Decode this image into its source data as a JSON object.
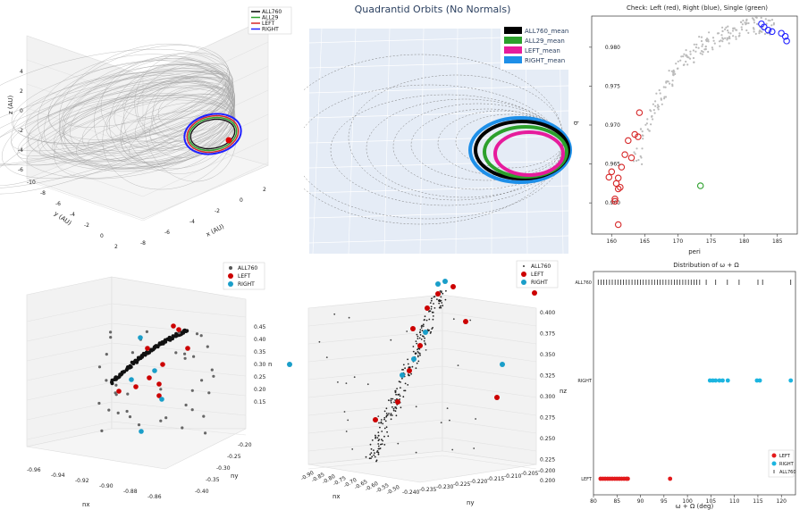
{
  "p1": {
    "legend": [
      "ALL760",
      "ALL29",
      "LEFT",
      "RIGHT"
    ],
    "colors": [
      "#000000",
      "#2ca02c",
      "#d62728",
      "#1f1fff"
    ],
    "zlabel": "z (AU)",
    "xlabel": "x (AU)",
    "ylabel": "y (AU)",
    "zticks": [
      "4",
      "2",
      "0",
      "-2",
      "-4",
      "-6"
    ],
    "xticks": [
      "-8",
      "-6",
      "-4",
      "-2",
      "0",
      "2"
    ],
    "yticks": [
      "-10",
      "-8",
      "-6",
      "-4",
      "-2",
      "0",
      "2"
    ]
  },
  "p2": {
    "title": "Quadrantid Orbits (No Normals)",
    "legend": [
      "ALL760_mean",
      "ALL29_mean",
      "LEFT_mean",
      "RIGHT_mean"
    ],
    "colors": [
      "#000000",
      "#2ca02c",
      "#e61c9c",
      "#1e8fe8"
    ]
  },
  "chart_data": [
    {
      "type": "scatter",
      "title": "Check: Left (red), Right (blue), Single (green)",
      "xlabel": "peri",
      "ylabel": "q",
      "xlim": [
        157,
        188
      ],
      "ylim": [
        0.956,
        0.984
      ],
      "xticks": [
        160,
        165,
        170,
        175,
        180,
        185
      ],
      "yticks": [
        0.96,
        0.965,
        0.97,
        0.975,
        0.98
      ],
      "series": [
        {
          "name": "All",
          "color": "#bbbbbb",
          "x": [
            164,
            165,
            166,
            167,
            168,
            169,
            170,
            171,
            172,
            173,
            174,
            175,
            176,
            177,
            178,
            179,
            180,
            181,
            182,
            183,
            184
          ],
          "y": [
            0.966,
            0.969,
            0.971,
            0.973,
            0.9745,
            0.976,
            0.9772,
            0.9783,
            0.979,
            0.9797,
            0.9803,
            0.9808,
            0.9812,
            0.9816,
            0.9819,
            0.9822,
            0.9826,
            0.9828,
            0.9829,
            0.9828,
            0.9825
          ]
        },
        {
          "name": "Left",
          "color": "#d62728",
          "x": [
            159.6,
            160.0,
            160.5,
            160.7,
            161.0,
            161.3,
            161.0,
            160.5,
            161.5,
            162.0,
            162.5,
            163.0,
            163.5,
            164.0,
            164.2,
            161.0
          ],
          "y": [
            0.9633,
            0.964,
            0.9605,
            0.9625,
            0.9618,
            0.962,
            0.9632,
            0.9602,
            0.9646,
            0.9662,
            0.968,
            0.9658,
            0.9688,
            0.9685,
            0.9716,
            0.9572
          ]
        },
        {
          "name": "Right",
          "color": "#1f1fff",
          "x": [
            182.6,
            183.0,
            183.6,
            184.2,
            185.6,
            186.2,
            186.4
          ],
          "y": [
            0.983,
            0.9826,
            0.9822,
            0.982,
            0.9818,
            0.9814,
            0.9808
          ]
        },
        {
          "name": "Single",
          "color": "#2ca02c",
          "x": [
            173.4
          ],
          "y": [
            0.9622
          ]
        }
      ]
    },
    {
      "type": "scatter",
      "xlabel": "nx",
      "ylabel": "ny",
      "zlabel": "n",
      "legend": [
        "ALL760",
        "LEFT",
        "RIGHT"
      ],
      "colors": [
        "#555555",
        "#cc0000",
        "#1a9ec9"
      ],
      "nx_ticks": [
        "-0.96",
        "-0.94",
        "-0.92",
        "-0.90",
        "-0.88",
        "-0.86"
      ],
      "ny_ticks": [
        "-0.20",
        "-0.25",
        "-0.30",
        "-0.35",
        "-0.40"
      ],
      "n_ticks": [
        "0.45",
        "0.40",
        "0.35",
        "0.30",
        "0.25",
        "0.20",
        "0.15"
      ]
    },
    {
      "type": "scatter",
      "xlabel": "nx",
      "ylabel": "ny",
      "zlabel": "nz",
      "legend": [
        "ALL760",
        "LEFT",
        "RIGHT"
      ],
      "colors": [
        "#333333",
        "#cc0000",
        "#1a9ec9"
      ],
      "nz_ticks": [
        "0.400",
        "0.375",
        "0.350",
        "0.325",
        "0.300",
        "0.275",
        "0.250",
        "0.225",
        "0.200"
      ],
      "ny_ticks": [
        "-0.240",
        "-0.235",
        "-0.230",
        "-0.225",
        "-0.220",
        "-0.215",
        "-0.210",
        "-0.205",
        "-0.200"
      ],
      "nx_ticks": [
        "-0.90",
        "-0.85",
        "-0.80",
        "-0.75",
        "-0.70",
        "-0.65",
        "-0.60",
        "-0.55",
        "-0.50"
      ]
    },
    {
      "type": "scatter",
      "title": "Distribution of ω + Ω",
      "xlabel": "ω + Ω (deg)",
      "xlim": [
        80,
        123
      ],
      "xticks": [
        80,
        85,
        90,
        95,
        100,
        105,
        110,
        115,
        120
      ],
      "categories": [
        "LEFT",
        "RIGHT",
        "ALL760"
      ],
      "legend": [
        "LEFT",
        "RIGHT",
        "ALL760"
      ],
      "colors": [
        "#e31a1c",
        "#1cb5e0",
        "#222222"
      ],
      "series": [
        {
          "name": "LEFT",
          "values": [
            81.5,
            82,
            82.5,
            83,
            83.5,
            84,
            84.5,
            85,
            85.5,
            86,
            86.5,
            87,
            87.3,
            96.3
          ]
        },
        {
          "name": "RIGHT",
          "values": [
            104.8,
            105.4,
            106,
            106.8,
            107.5,
            108.6,
            114.8,
            115.4,
            122
          ]
        },
        {
          "name": "ALL760",
          "values": [
            81,
            81.6,
            82.2,
            82.8,
            83.4,
            84,
            84.6,
            85.2,
            85.8,
            86.4,
            87,
            87.6,
            88.2,
            88.8,
            89.4,
            90,
            90.6,
            91.2,
            91.8,
            92.4,
            93,
            93.6,
            94.2,
            94.8,
            95.4,
            96,
            96.6,
            97.2,
            97.8,
            98.4,
            99,
            99.6,
            100.2,
            100.8,
            101.4,
            102,
            102.6,
            104,
            106,
            108.5,
            111,
            115,
            116,
            122
          ]
        }
      ]
    }
  ]
}
